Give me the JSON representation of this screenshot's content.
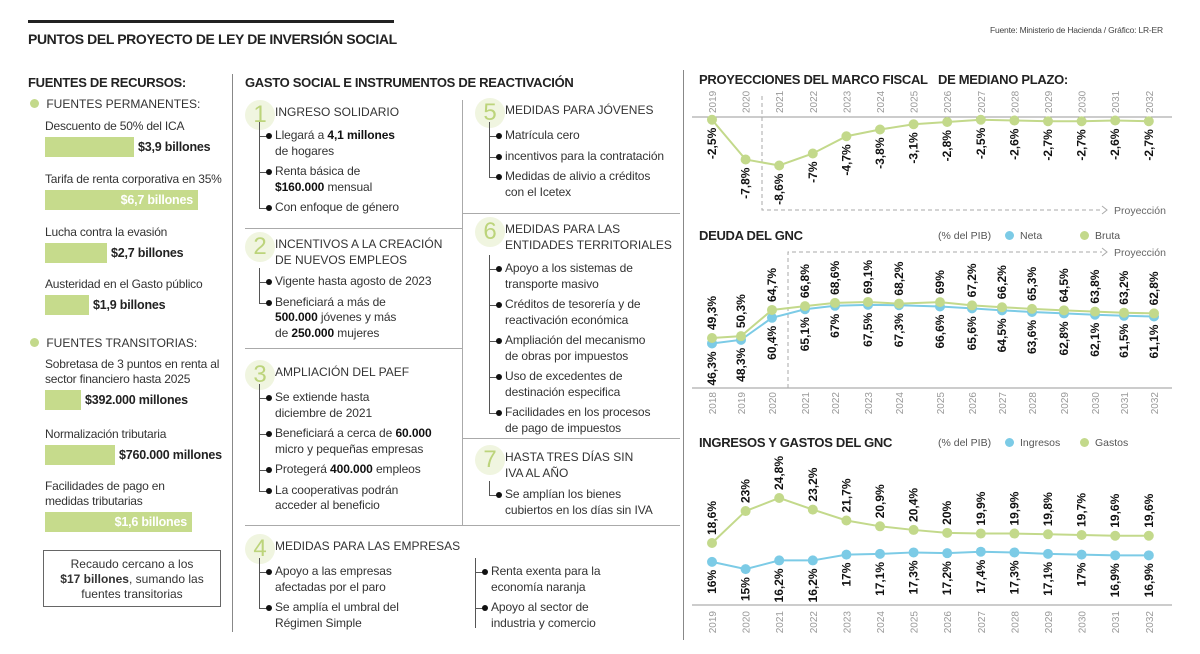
{
  "header": {
    "title": "PUNTOS DEL PROYECTO DE LEY DE INVERSIÓN SOCIAL",
    "source": "Fuente: Ministerio de Hacienda / Gráfico: LR-ER"
  },
  "fuentes": {
    "title": "FUENTES DE RECURSOS:",
    "permanentes": {
      "label": "FUENTES PERMANENTES:",
      "items": [
        {
          "label": "Descuento de 50% del ICA",
          "value": "$3,9 billones"
        },
        {
          "label": "Tarifa de renta corporativa en 35%",
          "value": "$6,7 billones"
        },
        {
          "label": "Lucha contra la evasión",
          "value": "$2,7 billones"
        },
        {
          "label": "Austeridad en el Gasto público",
          "value": "$1,9 billones"
        }
      ]
    },
    "transitorias": {
      "label": "FUENTES TRANSITORIAS:",
      "items": [
        {
          "label": "Sobretasa de 3 puntos en renta al sector financiero hasta 2025",
          "value": "$392.000 millones"
        },
        {
          "label": "Normalización tributaria",
          "value": "$760.000 millones"
        },
        {
          "label": "Facilidades de pago en medidas tributarias",
          "value": "$1,6 billones"
        }
      ]
    },
    "box": {
      "pre": "Recaudo cercano a los",
      "bold": "$17 billones",
      "post": ", sumando las fuentes transitorias"
    }
  },
  "gasto": {
    "title": "GASTO SOCIAL E INSTRUMENTOS DE REACTIVACIÓN",
    "sections": [
      {
        "num": "1",
        "title": [
          "INGRESO SOLIDARIO"
        ],
        "bullets": [
          [
            {
              "t": "Llegará a "
            },
            {
              "t": "4,1 millones",
              "b": true
            },
            {
              "br": true
            },
            {
              "t": "de hogares"
            }
          ],
          [
            {
              "t": "Renta básica de"
            },
            {
              "br": true
            },
            {
              "t": "$160.000",
              "b": true
            },
            {
              "t": " mensual"
            }
          ],
          [
            {
              "t": "Con enfoque de género"
            }
          ]
        ]
      },
      {
        "num": "2",
        "title": [
          "INCENTIVOS A LA CREACIÓN",
          "DE NUEVOS EMPLEOS"
        ],
        "bullets": [
          [
            {
              "t": "Vigente hasta agosto de 2023"
            }
          ],
          [
            {
              "t": "Beneficiará a más de"
            },
            {
              "br": true
            },
            {
              "t": "500.000",
              "b": true
            },
            {
              "t": " jóvenes y más"
            },
            {
              "br": true
            },
            {
              "t": "de "
            },
            {
              "t": "250.000",
              "b": true
            },
            {
              "t": " mujeres"
            }
          ]
        ]
      },
      {
        "num": "3",
        "title": [
          "AMPLIACIÓN DEL PAEF"
        ],
        "bullets": [
          [
            {
              "t": "Se extiende hasta"
            },
            {
              "br": true
            },
            {
              "t": "diciembre de 2021"
            }
          ],
          [
            {
              "t": "Beneficiará a cerca de "
            },
            {
              "t": "60.000",
              "b": true
            },
            {
              "br": true
            },
            {
              "t": "micro y pequeñas empresas"
            }
          ],
          [
            {
              "t": "Protegerá "
            },
            {
              "t": "400.000",
              "b": true
            },
            {
              "t": " empleos"
            }
          ],
          [
            {
              "t": "La cooperativas podrán"
            },
            {
              "br": true
            },
            {
              "t": "acceder al beneficio"
            }
          ]
        ]
      },
      {
        "num": "4",
        "title": [
          "MEDIDAS PARA LAS EMPRESAS"
        ],
        "bullets": [
          [
            {
              "t": "Apoyo a las empresas"
            },
            {
              "br": true
            },
            {
              "t": "afectadas por el paro"
            }
          ],
          [
            {
              "t": "Se amplía el umbral del"
            },
            {
              "br": true
            },
            {
              "t": "Régimen Simple"
            }
          ]
        ],
        "bullets2": [
          [
            {
              "t": "Renta exenta para la"
            },
            {
              "br": true
            },
            {
              "t": "economía naranja"
            }
          ],
          [
            {
              "t": "Apoyo al sector de"
            },
            {
              "br": true
            },
            {
              "t": "industria y comercio"
            }
          ]
        ]
      },
      {
        "num": "5",
        "title": [
          "MEDIDAS PARA JÓVENES"
        ],
        "bullets": [
          [
            {
              "t": "Matrícula cero"
            }
          ],
          [
            {
              "t": "incentivos para la contratación"
            }
          ],
          [
            {
              "t": "Medidas de alivio a créditos"
            },
            {
              "br": true
            },
            {
              "t": "con el Icetex"
            }
          ]
        ]
      },
      {
        "num": "6",
        "title": [
          "MEDIDAS PARA LAS",
          "ENTIDADES TERRITORIALES"
        ],
        "bullets": [
          [
            {
              "t": "Apoyo a los sistemas de"
            },
            {
              "br": true
            },
            {
              "t": "transporte masivo"
            }
          ],
          [
            {
              "t": "Créditos de tesorería y de"
            },
            {
              "br": true
            },
            {
              "t": "reactivación económica"
            }
          ],
          [
            {
              "t": "Ampliación del mecanismo"
            },
            {
              "br": true
            },
            {
              "t": "de obras por impuestos"
            }
          ],
          [
            {
              "t": "Uso de excedentes de"
            },
            {
              "br": true
            },
            {
              "t": "destinación especifica"
            }
          ],
          [
            {
              "t": "Facilidades en los procesos"
            },
            {
              "br": true
            },
            {
              "t": "de pago de impuestos"
            }
          ]
        ]
      },
      {
        "num": "7",
        "title": [
          "HASTA TRES DÍAS SIN",
          "IVA AL AÑO"
        ],
        "bullets": [
          [
            {
              "t": "Se amplían los bienes"
            },
            {
              "br": true
            },
            {
              "t": "cubiertos en los días sin IVA"
            }
          ]
        ]
      }
    ]
  },
  "colors": {
    "green": "#c3d98b",
    "blue": "#7ccbe6",
    "bar": "#c6db8c"
  },
  "chart_data": [
    {
      "type": "line",
      "title": "PROYECCIONES DEL MARCO FISCAL",
      "title2": "DE MEDIANO PLAZO:",
      "x": [
        "2019",
        "2020",
        "2021",
        "2022",
        "2023",
        "2024",
        "2025",
        "2026",
        "2027",
        "2028",
        "2029",
        "2030",
        "2031",
        "2032"
      ],
      "series": [
        {
          "values": [
            -2.5,
            -7.8,
            -8.6,
            -7,
            -4.7,
            -3.8,
            -3.1,
            -2.8,
            -2.5,
            -2.6,
            -2.7,
            -2.7,
            -2.6,
            -2.7
          ],
          "labels": [
            "-2,5%",
            "-7,8%",
            "-8,6%",
            "-7%",
            "-4,7%",
            "-3,8%",
            "-3,1%",
            "-2,8%",
            "-2,5%",
            "-2,6%",
            "-2,7%",
            "-2,7%",
            "-2,6%",
            "-2,7%"
          ],
          "color": "#c3d98b"
        }
      ],
      "annotation": "Proyección",
      "projection_from": "2021",
      "grid": false
    },
    {
      "type": "line",
      "title": "DEUDA DEL GNC",
      "unit": "(% del PIB)",
      "x": [
        "2018",
        "2019",
        "2020",
        "2021",
        "2022",
        "2023",
        "2024",
        "2025",
        "2026",
        "2027",
        "2028",
        "2029",
        "2030",
        "2031",
        "2032"
      ],
      "series": [
        {
          "name": "Neta",
          "color": "#7ccbe6",
          "values": [
            46.3,
            48.3,
            60.4,
            65.1,
            67,
            67.5,
            67.3,
            66.6,
            65.6,
            64.5,
            63.6,
            62.8,
            62.1,
            61.5,
            61.1
          ],
          "labels": [
            "46,3%",
            "48,3%",
            "60,4%",
            "65,1%",
            "67%",
            "67,5%",
            "67,3%",
            "66,6%",
            "65,6%",
            "64,5%",
            "63,6%",
            "62,8%",
            "62,1%",
            "61,5%",
            "61,1%"
          ]
        },
        {
          "name": "Bruta",
          "color": "#c3d98b",
          "values": [
            49.3,
            50.3,
            64.7,
            66.8,
            68.6,
            69.1,
            68.2,
            69,
            67.2,
            66.2,
            65.3,
            64.5,
            63.8,
            63.2,
            62.8
          ],
          "labels": [
            "49,3%",
            "50,3%",
            "64,7%",
            "66,8%",
            "68,6%",
            "69,1%",
            "68,2%",
            "69%",
            "67,2%",
            "66,2%",
            "65,3%",
            "64,5%",
            "63,8%",
            "63,2%",
            "62,8%"
          ]
        }
      ],
      "annotation": "Proyección",
      "projection_from": "2021",
      "legend": "top-right",
      "grid": false
    },
    {
      "type": "line",
      "title": "INGRESOS Y GASTOS DEL GNC",
      "unit": "(% del PIB)",
      "x": [
        "2019",
        "2020",
        "2021",
        "2022",
        "2023",
        "2024",
        "2025",
        "2026",
        "2027",
        "2028",
        "2029",
        "2030",
        "2031",
        "2032"
      ],
      "series": [
        {
          "name": "Ingresos",
          "color": "#7ccbe6",
          "values": [
            16,
            15,
            16.2,
            16.2,
            17,
            17.1,
            17.3,
            17.2,
            17.4,
            17.3,
            17.1,
            17,
            16.9,
            16.9
          ],
          "labels": [
            "16%",
            "15%",
            "16,2%",
            "16,2%",
            "17%",
            "17,1%",
            "17,3%",
            "17,2%",
            "17,4%",
            "17,3%",
            "17,1%",
            "17%",
            "16,9%",
            "16,9%"
          ]
        },
        {
          "name": "Gastos",
          "color": "#c3d98b",
          "values": [
            18.6,
            23,
            24.8,
            23.2,
            21.7,
            20.9,
            20.4,
            20,
            19.9,
            19.9,
            19.8,
            19.7,
            19.6,
            19.6
          ],
          "labels": [
            "18,6%",
            "23%",
            "24,8%",
            "23,2%",
            "21,7%",
            "20,9%",
            "20,4%",
            "20%",
            "19,9%",
            "19,9%",
            "19,8%",
            "19,7%",
            "19,6%",
            "19,6%"
          ]
        }
      ],
      "legend": "top-right",
      "grid": false
    }
  ]
}
